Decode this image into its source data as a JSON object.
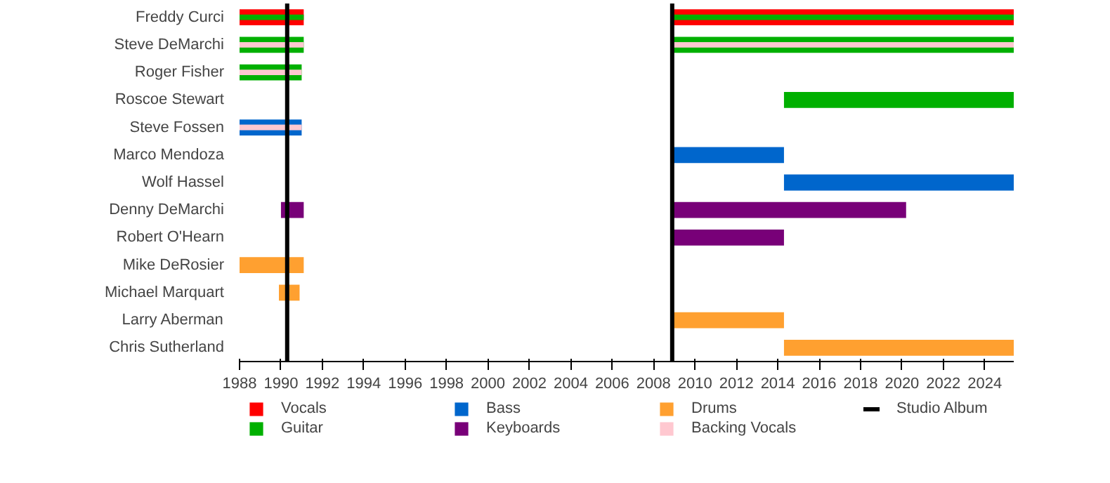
{
  "chart_data": {
    "type": "bar",
    "orientation": "horizontal",
    "legend": "bottom",
    "categories": [
      "Freddy Curci",
      "Steve DeMarchi",
      "Roger Fisher",
      "Roscoe Stewart",
      "Steve Fossen",
      "Marco Mendoza",
      "Wolf Hassel",
      "Denny DeMarchi",
      "Robert O'Hearn",
      "Mike DeRosier",
      "Michael Marquart",
      "Larry Aberman",
      "Chris Sutherland"
    ],
    "xlim": [
      1988,
      2025.4
    ],
    "xticks": [
      1988,
      1990,
      1992,
      1994,
      1996,
      1998,
      2000,
      2002,
      2004,
      2006,
      2008,
      2010,
      2012,
      2014,
      2016,
      2018,
      2020,
      2022,
      2024
    ],
    "series": [
      {
        "name": "Vocals",
        "color": "#ff0000",
        "base": [
          1988,
          null,
          null,
          null,
          null,
          null,
          null,
          null,
          null,
          null,
          null,
          null,
          null
        ],
        "values": [
          3.1,
          null,
          null,
          null,
          null,
          null,
          null,
          null,
          null,
          null,
          null,
          null,
          null
        ]
      },
      {
        "color": "#ff0000",
        "base": [
          2008.9,
          null,
          null,
          null,
          null,
          null,
          null,
          null,
          null,
          null,
          null,
          null,
          null
        ],
        "values": [
          16.5,
          null,
          null,
          null,
          null,
          null,
          null,
          null,
          null,
          null,
          null,
          null,
          null
        ]
      },
      {
        "name": "Guitar",
        "color": "#00b000",
        "base": [
          1988,
          1988,
          1988,
          2014.3,
          null,
          null,
          null,
          null,
          null,
          null,
          null,
          null,
          null
        ],
        "values": [
          3.1,
          3.1,
          3.0,
          11.1,
          null,
          null,
          null,
          null,
          null,
          null,
          null,
          null,
          null
        ]
      },
      {
        "color": "#00b000",
        "base": [
          2008.9,
          2008.9,
          null,
          null,
          null,
          null,
          null,
          null,
          null,
          null,
          null,
          null,
          null
        ],
        "values": [
          16.5,
          16.5,
          null,
          null,
          null,
          null,
          null,
          null,
          null,
          null,
          null,
          null,
          null
        ]
      },
      {
        "name": "Bass",
        "color": "#0066cc",
        "base": [
          null,
          null,
          null,
          null,
          1988,
          2008.9,
          2014.3,
          null,
          null,
          null,
          null,
          null,
          null
        ],
        "values": [
          null,
          null,
          null,
          null,
          3.0,
          5.4,
          11.1,
          null,
          null,
          null,
          null,
          null,
          null
        ]
      },
      {
        "name": "Keyboards",
        "color": "#780078",
        "base": [
          null,
          null,
          null,
          null,
          null,
          null,
          null,
          1990.0,
          2008.9,
          null,
          null,
          null,
          null
        ],
        "values": [
          null,
          null,
          null,
          null,
          null,
          null,
          null,
          1.1,
          5.4,
          null,
          null,
          null,
          null
        ]
      },
      {
        "color": "#780078",
        "base": [
          null,
          null,
          null,
          null,
          null,
          null,
          null,
          2008.9,
          null,
          null,
          null,
          null,
          null
        ],
        "values": [
          null,
          null,
          null,
          null,
          null,
          null,
          null,
          11.3,
          null,
          null,
          null,
          null,
          null
        ]
      },
      {
        "name": "Drums",
        "color": "#ffa030",
        "base": [
          null,
          null,
          null,
          null,
          null,
          null,
          null,
          null,
          null,
          1988,
          1989.9,
          2008.9,
          2014.3
        ],
        "values": [
          null,
          null,
          null,
          null,
          null,
          null,
          null,
          null,
          null,
          3.1,
          1.0,
          5.4,
          11.1
        ]
      },
      {
        "name": "Backing Vocals",
        "color": "#ffc8d0",
        "base": [
          null,
          1988,
          1988,
          null,
          1988,
          null,
          null,
          null,
          null,
          null,
          null,
          null,
          null
        ],
        "values": [
          null,
          3.1,
          3.0,
          null,
          3.0,
          null,
          null,
          null,
          null,
          null,
          null,
          null,
          null
        ]
      },
      {
        "color": "#ffc8d0",
        "base": [
          null,
          2008.9,
          null,
          null,
          null,
          null,
          null,
          null,
          null,
          null,
          null,
          null,
          null
        ],
        "values": [
          null,
          16.5,
          null,
          null,
          null,
          null,
          null,
          null,
          null,
          null,
          null,
          null,
          null
        ]
      }
    ],
    "ref_lines": [
      {
        "axis": "x",
        "value": 1990.3,
        "label": "Studio Album",
        "color": "#000000"
      },
      {
        "axis": "x",
        "value": 2008.9,
        "label": null,
        "color": "#000000"
      }
    ]
  }
}
